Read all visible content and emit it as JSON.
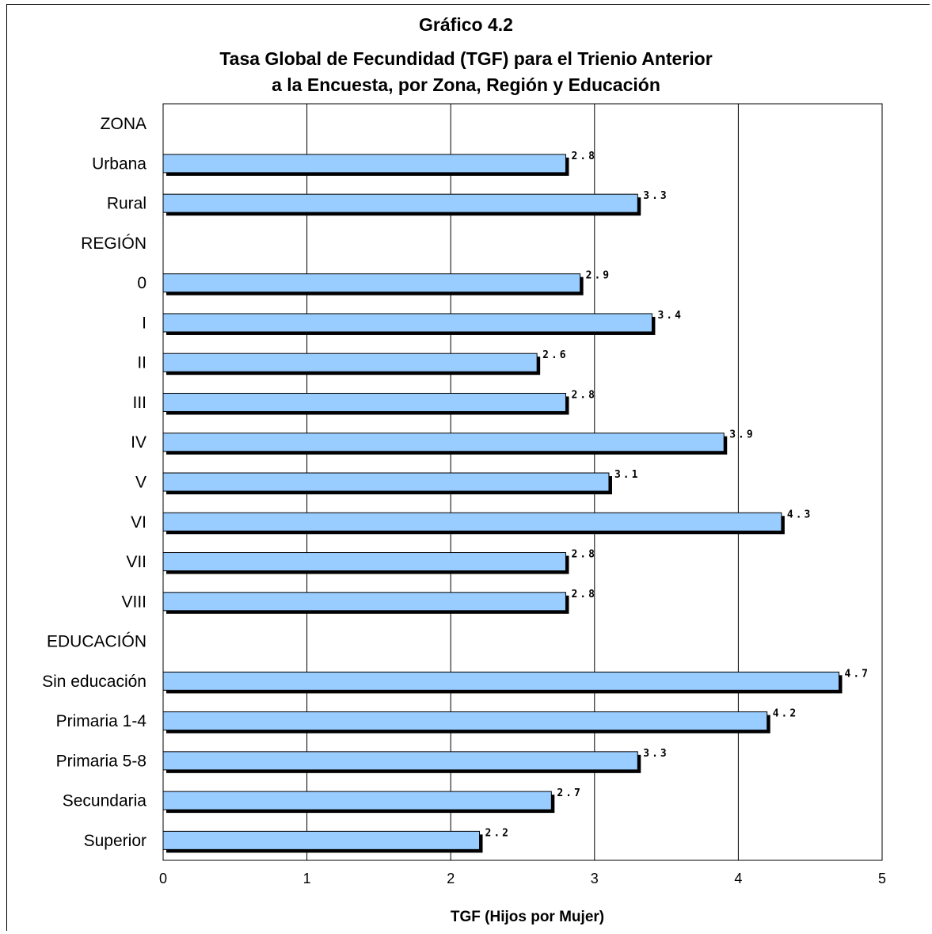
{
  "chart_data": {
    "type": "bar",
    "orientation": "horizontal",
    "title_lines": [
      "Gráfico 4.2",
      "Tasa Global de Fecundidad (TGF) para el Trienio Anterior",
      "a la Encuesta, por Zona, Región y Educación"
    ],
    "xlabel": "TGF (Hijos por Mujer)",
    "ylabel": "",
    "xlim": [
      0,
      5
    ],
    "x_ticks": [
      "0",
      "1",
      "2",
      "3",
      "4",
      "5"
    ],
    "grid": "vertical",
    "categories": [
      "ZONA",
      "Urbana",
      "Rural",
      "REGIÓN",
      "0",
      "I",
      "II",
      "III",
      "IV",
      "V",
      "VI",
      "VII",
      "VIII",
      "EDUCACIÓN",
      "Sin educación",
      "Primaria 1-4",
      "Primaria 5-8",
      "Secundaria",
      "Superior"
    ],
    "values": [
      null,
      2.8,
      3.3,
      null,
      2.9,
      3.4,
      2.6,
      2.8,
      3.9,
      3.1,
      4.3,
      2.8,
      2.8,
      null,
      4.7,
      4.2,
      3.3,
      2.7,
      2.2
    ],
    "data_labels": [
      "",
      "2.8",
      "3.3",
      "",
      "2.9",
      "3.4",
      "2.6",
      "2.8",
      "3.9",
      "3.1",
      "4.3",
      "2.8",
      "2.8",
      "",
      "4.7",
      "4.2",
      "3.3",
      "2.7",
      "2.2"
    ],
    "colors": {
      "bar": "#99ccff",
      "shadow": "#000000",
      "grid": "#000000"
    }
  }
}
